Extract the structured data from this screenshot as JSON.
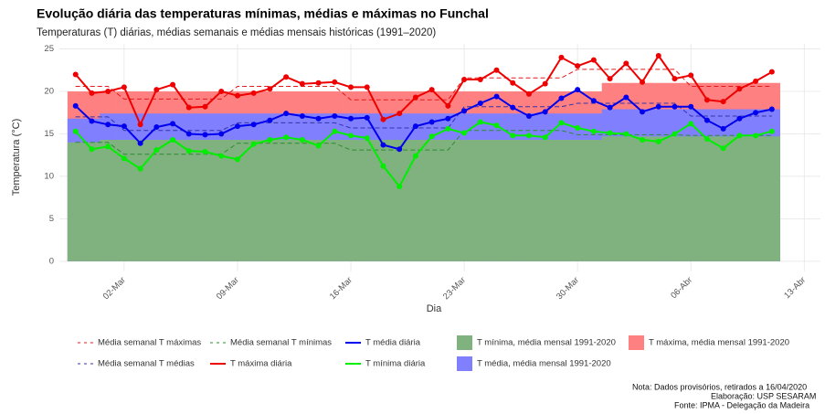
{
  "chart_data": {
    "type": "line",
    "title": "Evolução diária das temperaturas mínimas, médias e máximas no Funchal",
    "subtitle": "Temperaturas (T) diárias, médias semanais e médias mensais históricas (1991–2020)",
    "x_label": "Dia",
    "y_label": "Temperatura (°C)",
    "x": [
      "28-Fev",
      "29-Fev",
      "01-Mar",
      "02-Mar",
      "03-Mar",
      "04-Mar",
      "05-Mar",
      "06-Mar",
      "07-Mar",
      "08-Mar",
      "09-Mar",
      "10-Mar",
      "11-Mar",
      "12-Mar",
      "13-Mar",
      "14-Mar",
      "15-Mar",
      "16-Mar",
      "17-Mar",
      "18-Mar",
      "19-Mar",
      "20-Mar",
      "21-Mar",
      "22-Mar",
      "23-Mar",
      "24-Mar",
      "25-Mar",
      "26-Mar",
      "27-Mar",
      "28-Mar",
      "29-Mar",
      "30-Mar",
      "31-Mar",
      "01-Abr",
      "02-Abr",
      "03-Abr",
      "04-Abr",
      "05-Abr",
      "06-Abr",
      "07-Abr",
      "08-Abr",
      "09-Abr",
      "10-Abr",
      "11-Abr"
    ],
    "xlim": [
      "27-Fev",
      "14-Abr"
    ],
    "xticks": [
      "02-Mar",
      "09-Mar",
      "16-Mar",
      "23-Mar",
      "30-Mar",
      "06-Abr",
      "13-Abr"
    ],
    "ylim": [
      -1.2,
      25.6
    ],
    "yticks": [
      0,
      5,
      10,
      15,
      20,
      25
    ],
    "grid": true,
    "series": [
      {
        "name": "Média semanal T máximas",
        "color": "#e41a1c",
        "style": "dashed",
        "values": [
          20.6,
          20.6,
          20.6,
          19.1,
          19.1,
          19.1,
          19.1,
          19.1,
          19.1,
          19.1,
          20.6,
          20.6,
          20.6,
          20.6,
          20.6,
          20.6,
          20.6,
          19.0,
          19.0,
          19.0,
          19.0,
          19.0,
          19.0,
          19.0,
          21.6,
          21.6,
          21.6,
          21.6,
          21.6,
          21.6,
          21.6,
          22.6,
          22.6,
          22.6,
          22.6,
          22.6,
          22.6,
          22.6,
          20.6,
          20.6,
          20.6,
          20.6,
          20.6,
          20.6
        ]
      },
      {
        "name": "Média semanal T mínimas",
        "color": "#2e8b2e",
        "style": "dashed",
        "values": [
          14.0,
          14.0,
          14.0,
          12.6,
          12.6,
          12.6,
          12.6,
          12.6,
          12.6,
          12.6,
          13.9,
          13.9,
          13.9,
          13.9,
          13.9,
          13.9,
          13.9,
          13.1,
          13.1,
          13.1,
          13.1,
          13.1,
          13.1,
          13.1,
          15.4,
          15.4,
          15.4,
          15.4,
          15.4,
          15.4,
          15.4,
          14.9,
          14.9,
          14.9,
          14.9,
          14.9,
          14.9,
          14.9,
          14.8,
          14.8,
          14.8,
          14.8,
          14.8,
          14.8
        ]
      },
      {
        "name": "T média diária",
        "color": "#0000ee",
        "style": "solid",
        "values": [
          18.3,
          16.5,
          16.1,
          15.9,
          13.9,
          15.8,
          16.2,
          15.0,
          14.9,
          15.0,
          15.9,
          16.1,
          16.6,
          17.4,
          17.1,
          16.8,
          17.1,
          16.8,
          16.9,
          13.7,
          13.2,
          15.9,
          16.4,
          16.8,
          17.7,
          18.6,
          19.4,
          18.1,
          17.1,
          17.6,
          19.2,
          20.2,
          18.9,
          18.1,
          19.3,
          17.6,
          18.2,
          18.2,
          18.2,
          16.6,
          15.6,
          16.8,
          17.5,
          17.9
        ]
      },
      {
        "name": "T mínima, média mensal 1991-2020",
        "color": "#80b280",
        "style": "band",
        "values": [
          14.0,
          14.0,
          14.3,
          14.3,
          14.3,
          14.3,
          14.3,
          14.3,
          14.3,
          14.3,
          14.3,
          14.3,
          14.3,
          14.3,
          14.3,
          14.3,
          14.3,
          14.3,
          14.3,
          14.3,
          14.3,
          14.3,
          14.3,
          14.3,
          14.3,
          14.3,
          14.3,
          14.3,
          14.3,
          14.3,
          14.3,
          14.3,
          14.3,
          14.7,
          14.7,
          14.7,
          14.7,
          14.7,
          14.7,
          14.7,
          14.7,
          14.7,
          14.7,
          14.7
        ]
      },
      {
        "name": "T máxima, média mensal 1991-2020",
        "color": "#ff8080",
        "style": "band",
        "values": [
          20.0,
          20.0,
          20.0,
          20.0,
          20.0,
          20.0,
          20.0,
          20.0,
          20.0,
          20.0,
          20.0,
          20.0,
          20.0,
          20.0,
          20.0,
          20.0,
          20.0,
          20.0,
          20.0,
          20.0,
          20.0,
          20.0,
          20.0,
          20.0,
          20.0,
          20.0,
          20.0,
          20.0,
          20.0,
          20.0,
          20.0,
          20.0,
          20.0,
          21.0,
          21.0,
          21.0,
          21.0,
          21.0,
          21.0,
          21.0,
          21.0,
          21.0,
          21.0,
          21.0
        ]
      },
      {
        "name": "Média semanal T médias",
        "color": "#3333aa",
        "style": "dashed",
        "values": [
          17.0,
          17.0,
          17.0,
          15.4,
          15.4,
          15.4,
          15.4,
          15.4,
          15.4,
          15.4,
          16.3,
          16.3,
          16.3,
          16.3,
          16.3,
          16.3,
          16.3,
          15.7,
          15.7,
          15.7,
          15.7,
          15.7,
          15.7,
          15.7,
          18.2,
          18.2,
          18.2,
          18.2,
          18.2,
          18.2,
          18.2,
          18.6,
          18.6,
          18.6,
          18.6,
          18.6,
          18.6,
          18.6,
          17.1,
          17.1,
          17.1,
          17.1,
          17.1,
          17.1
        ]
      },
      {
        "name": "T máxima diária",
        "color": "#ee0000",
        "style": "solid",
        "values": [
          22.0,
          19.8,
          20.0,
          20.5,
          16.1,
          20.2,
          20.8,
          18.1,
          18.2,
          20.0,
          19.5,
          19.8,
          20.3,
          21.7,
          20.9,
          21.0,
          21.1,
          20.5,
          20.5,
          16.7,
          17.4,
          19.3,
          20.2,
          18.3,
          21.4,
          21.4,
          22.5,
          21.0,
          19.7,
          20.9,
          24.0,
          23.0,
          23.7,
          21.5,
          23.3,
          21.1,
          24.2,
          21.5,
          21.9,
          19.0,
          18.8,
          20.3,
          21.2,
          22.3
        ]
      },
      {
        "name": "T mínima diária",
        "color": "#00ee00",
        "style": "solid",
        "values": [
          15.3,
          13.2,
          13.5,
          12.1,
          10.9,
          13.1,
          14.3,
          13.0,
          12.9,
          12.4,
          12.0,
          13.8,
          14.3,
          14.6,
          14.3,
          13.6,
          15.3,
          14.8,
          14.5,
          11.2,
          8.8,
          12.4,
          14.7,
          15.6,
          15.1,
          16.4,
          16.0,
          14.8,
          14.8,
          14.6,
          16.3,
          15.7,
          15.3,
          15.1,
          15.0,
          14.3,
          14.1,
          15.0,
          16.2,
          14.4,
          13.3,
          14.8,
          14.8,
          15.3
        ]
      },
      {
        "name": "T média, média mensal 1991-2020",
        "color": "#8080ff",
        "style": "band",
        "values": [
          16.8,
          16.8,
          17.4,
          17.4,
          17.4,
          17.4,
          17.4,
          17.4,
          17.4,
          17.4,
          17.4,
          17.4,
          17.4,
          17.4,
          17.4,
          17.4,
          17.4,
          17.4,
          17.4,
          17.4,
          17.4,
          17.4,
          17.4,
          17.4,
          17.4,
          17.4,
          17.4,
          17.4,
          17.4,
          17.4,
          17.4,
          17.4,
          17.4,
          17.9,
          17.9,
          17.9,
          17.9,
          17.9,
          17.9,
          17.9,
          17.9,
          17.9,
          17.9,
          17.9
        ]
      }
    ],
    "notes": [
      "Nota: Dados provisórios, retirados a 16/04/2020",
      "Elaboração: USP SESARAM",
      "Fonte: IPMA - Delegação da Madeira"
    ]
  }
}
